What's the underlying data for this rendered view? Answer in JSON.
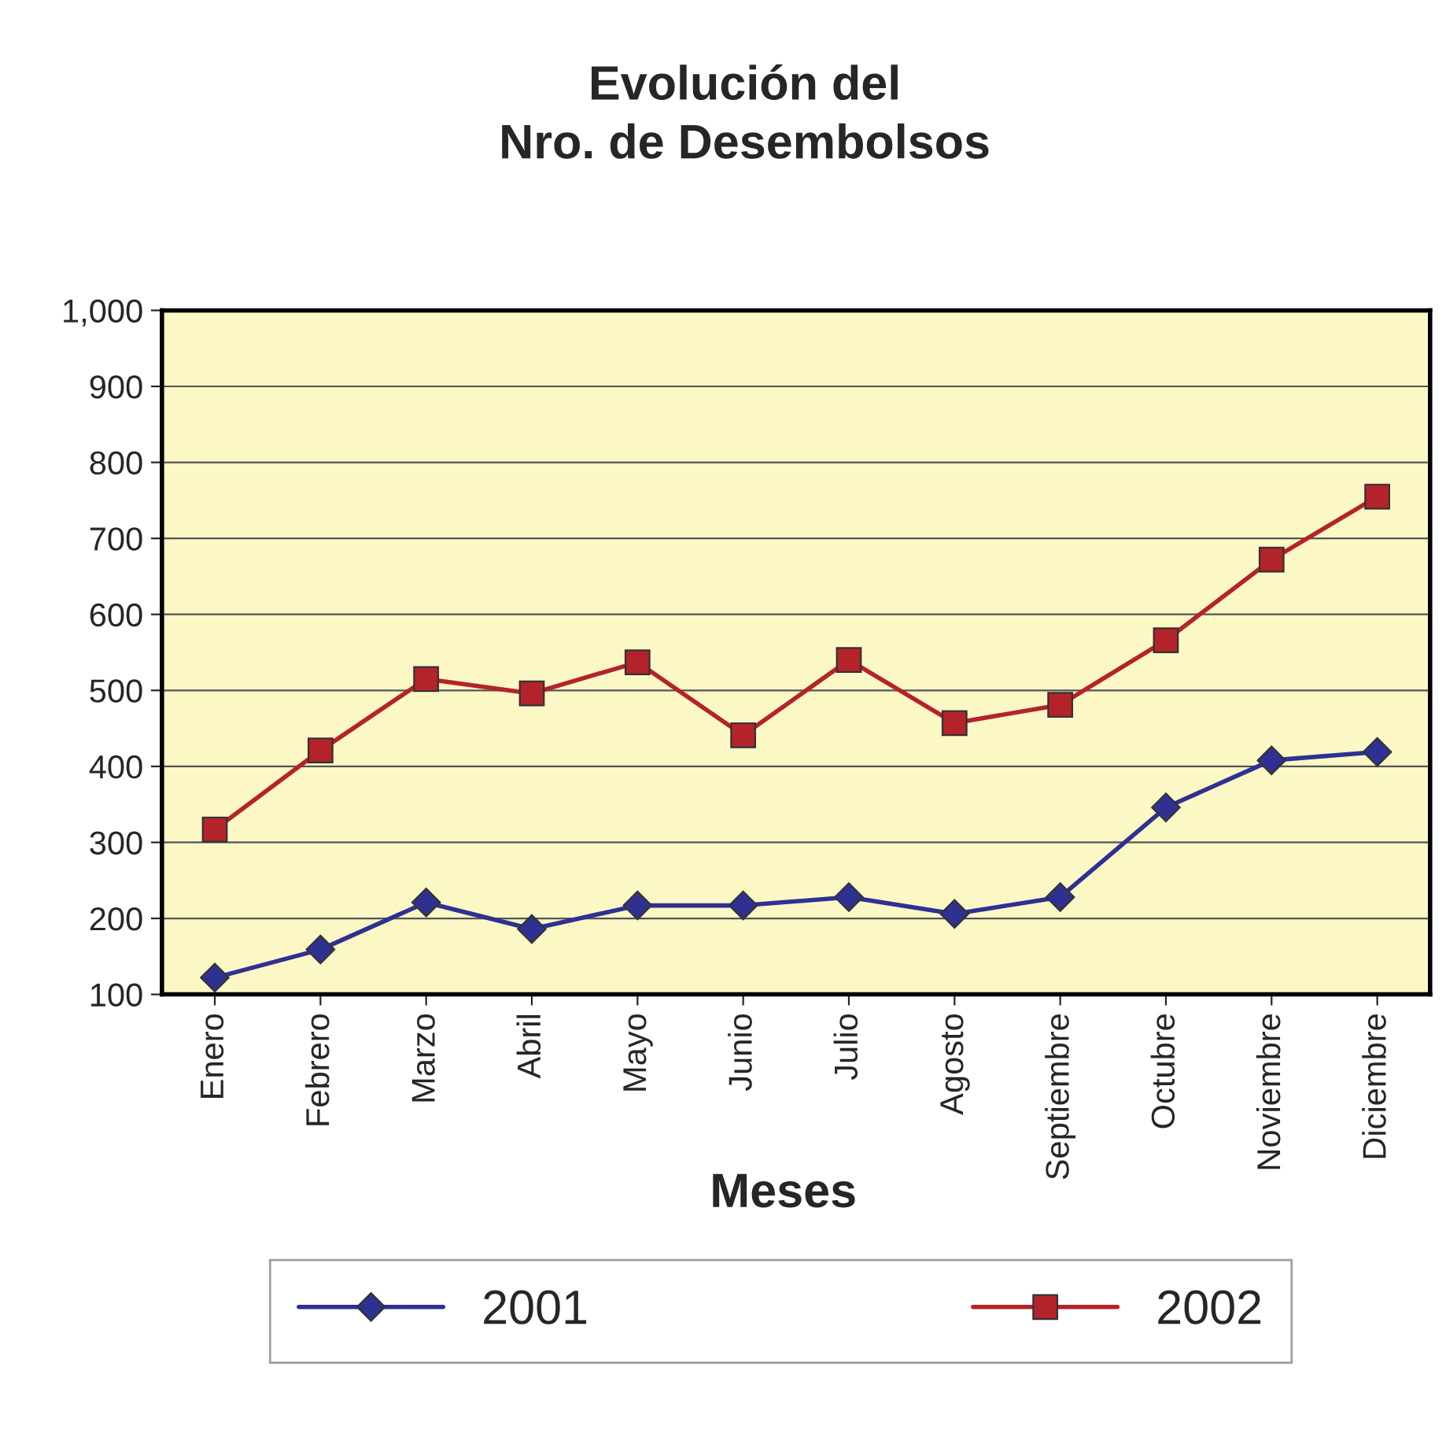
{
  "chart_data": {
    "type": "line",
    "title": "Evolución del\nNro. de Desembolsos",
    "xlabel": "Meses",
    "categories": [
      "Enero",
      "Febrero",
      "Marzo",
      "Abril",
      "Mayo",
      "Junio",
      "Julio",
      "Agosto",
      "Septiembre",
      "Octubre",
      "Noviembre",
      "Diciembre"
    ],
    "series": [
      {
        "name": "2001",
        "color": "#2e3192",
        "marker": "diamond",
        "values": [
          122,
          159,
          221,
          186,
          217,
          217,
          228,
          206,
          228,
          346,
          408,
          419
        ]
      },
      {
        "name": "2002",
        "color": "#b5232a",
        "marker": "square",
        "values": [
          317,
          421,
          515,
          496,
          537,
          441,
          540,
          457,
          481,
          566,
          672,
          755
        ]
      }
    ],
    "ylim": [
      100,
      1000
    ],
    "yticks": [
      100,
      200,
      300,
      400,
      500,
      600,
      700,
      800,
      900,
      {
        "value": 1000,
        "label": "1,000"
      }
    ],
    "grid": "y",
    "legend": "bottom",
    "line_style": "solid"
  }
}
